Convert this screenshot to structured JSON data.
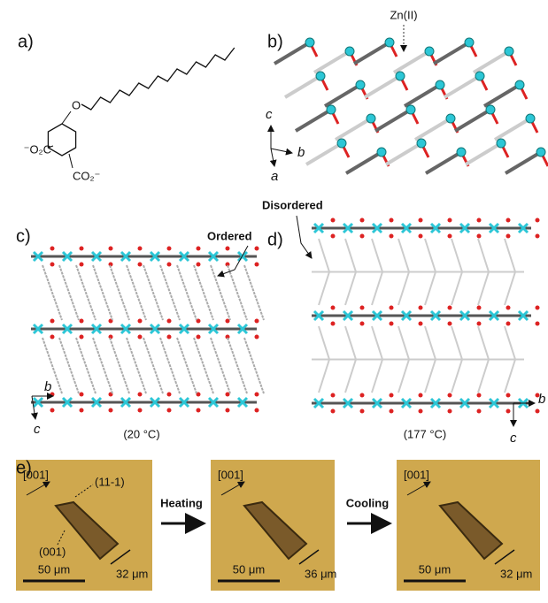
{
  "panels": {
    "a": {
      "label": "a)",
      "oxygen": "O",
      "left_group": "⁻O₂C",
      "right_group": "CO₂⁻"
    },
    "b": {
      "label": "b)",
      "annotation": "Zn(II)",
      "axis_up": "c",
      "axis_right": "b",
      "axis_down": "a"
    },
    "c": {
      "label": "c)",
      "annotation": "Ordered",
      "axis_right": "b",
      "axis_down": "c",
      "caption": "(20 °C)"
    },
    "d": {
      "label": "d)",
      "annotation": "Disordered",
      "axis_right": "b",
      "axis_down": "c",
      "caption": "(177 °C)"
    },
    "e": {
      "label": "e)",
      "steps": [
        "Heating",
        "Cooling"
      ],
      "frames": [
        {
          "direction": "[001]",
          "face_top": "(11-1)",
          "face_bottom": "(001)",
          "scale": "50 μm",
          "width": "32 μm"
        },
        {
          "direction": "[001]",
          "scale": "50 μm",
          "width": "36 μm"
        },
        {
          "direction": "[001]",
          "scale": "50 μm",
          "width": "32 μm"
        }
      ]
    }
  }
}
